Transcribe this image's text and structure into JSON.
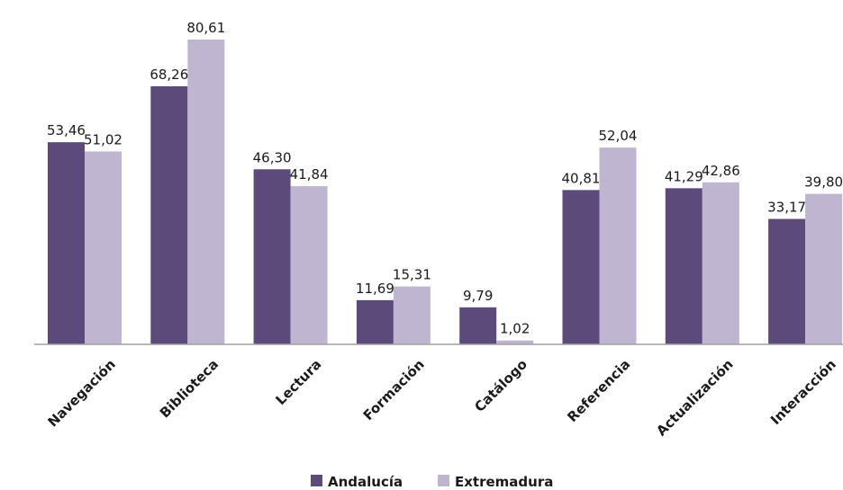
{
  "chart_data": {
    "type": "bar",
    "categories": [
      "Navegación",
      "Biblioteca",
      "Lectura",
      "Formación",
      "Catálogo",
      "Referencia",
      "Actualización",
      "Interacción"
    ],
    "series": [
      {
        "name": "Andalucía",
        "values": [
          53.46,
          68.26,
          46.3,
          11.69,
          9.79,
          40.81,
          41.29,
          33.17
        ],
        "color": "#5c4a7a"
      },
      {
        "name": "Extremadura",
        "values": [
          51.02,
          80.61,
          41.84,
          15.31,
          1.02,
          52.04,
          42.86,
          39.8
        ],
        "color": "#c0b5d0"
      }
    ],
    "value_labels": [
      [
        "53,46",
        "68,26",
        "46,30",
        "11,69",
        "9,79",
        "40,81",
        "41,29",
        "33,17"
      ],
      [
        "51,02",
        "80,61",
        "41,84",
        "15,31",
        "1,02",
        "52,04",
        "42,86",
        "39,80"
      ]
    ],
    "title": "",
    "xlabel": "",
    "ylabel": "",
    "ylim": [
      0,
      80.61
    ],
    "grid": false,
    "legend": "bottom",
    "axis_color": "#a0a0a0"
  }
}
